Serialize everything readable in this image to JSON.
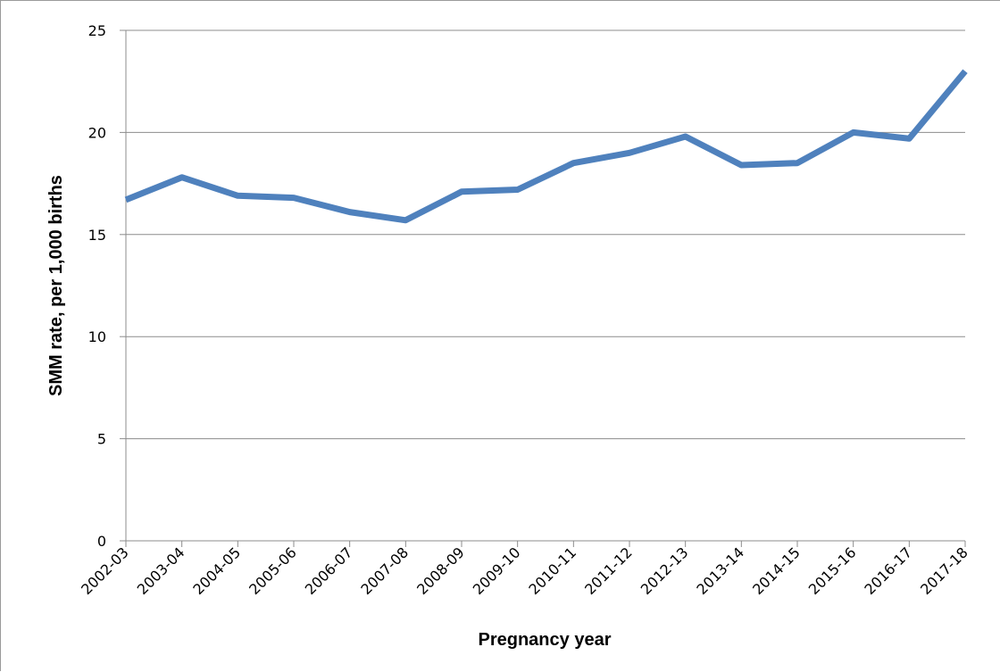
{
  "chart_data": {
    "type": "line",
    "title": "",
    "xlabel": "Pregnancy year",
    "ylabel": "SMM rate, per 1,000 births",
    "ylim": [
      0,
      25
    ],
    "yticks": [
      "0",
      "5",
      "10",
      "15",
      "20",
      "25"
    ],
    "grid": true,
    "legend": "none",
    "categories": [
      "2002-03",
      "2003-04",
      "2004-05",
      "2005-06",
      "2006-07",
      "2007-08",
      "2008-09",
      "2009-10",
      "2010-11",
      "2011-12",
      "2012-13",
      "2013-14",
      "2014-15",
      "2015-16",
      "2016-17",
      "2017-18"
    ],
    "series": [
      {
        "values": [
          16.7,
          17.8,
          16.9,
          16.8,
          16.1,
          15.7,
          17.1,
          17.2,
          18.5,
          19.0,
          19.8,
          18.4,
          18.5,
          20.0,
          19.7,
          23.0
        ],
        "color": "#4f81bd"
      }
    ]
  }
}
